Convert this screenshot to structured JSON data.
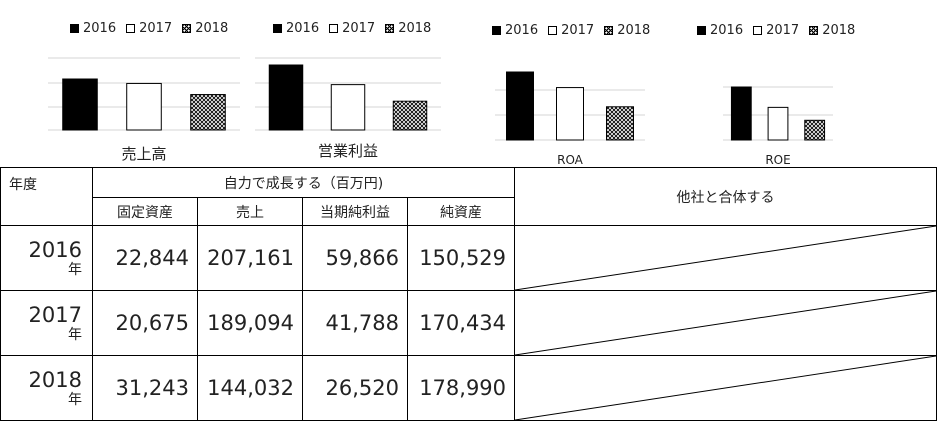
{
  "legend": [
    "2016",
    "2017",
    "2018"
  ],
  "chart_data": [
    {
      "type": "bar",
      "title": "売上高",
      "categories": [
        "2016",
        "2017",
        "2018"
      ],
      "values": [
        207161,
        189094,
        144032
      ]
    },
    {
      "type": "bar",
      "title": "営業利益",
      "categories": [
        "2016",
        "2017",
        "2018"
      ],
      "values": [
        59866,
        41788,
        26520
      ]
    },
    {
      "type": "bar",
      "title": "ROA",
      "categories": [
        "2016",
        "2017",
        "2018"
      ],
      "values": [
        2.62,
        2.02,
        1.28
      ]
    },
    {
      "type": "bar",
      "title": "ROE",
      "categories": [
        "2016",
        "2017",
        "2018"
      ],
      "values": [
        39.8,
        24.5,
        14.8
      ]
    }
  ],
  "table": {
    "year_header": "年度",
    "group_header": "自力で成長する（百万円)",
    "merge_header": "他社と合体する",
    "columns": [
      "固定資産",
      "売上",
      "当期純利益",
      "純資産"
    ],
    "year_suffix": "年",
    "rows": [
      {
        "year": "2016",
        "values": [
          "22,844",
          "207,161",
          "59,866",
          "150,529"
        ]
      },
      {
        "year": "2017",
        "values": [
          "20,675",
          "189,094",
          "41,788",
          "170,434"
        ]
      },
      {
        "year": "2018",
        "values": [
          "31,243",
          "144,032",
          "26,520",
          "178,990"
        ]
      }
    ]
  }
}
